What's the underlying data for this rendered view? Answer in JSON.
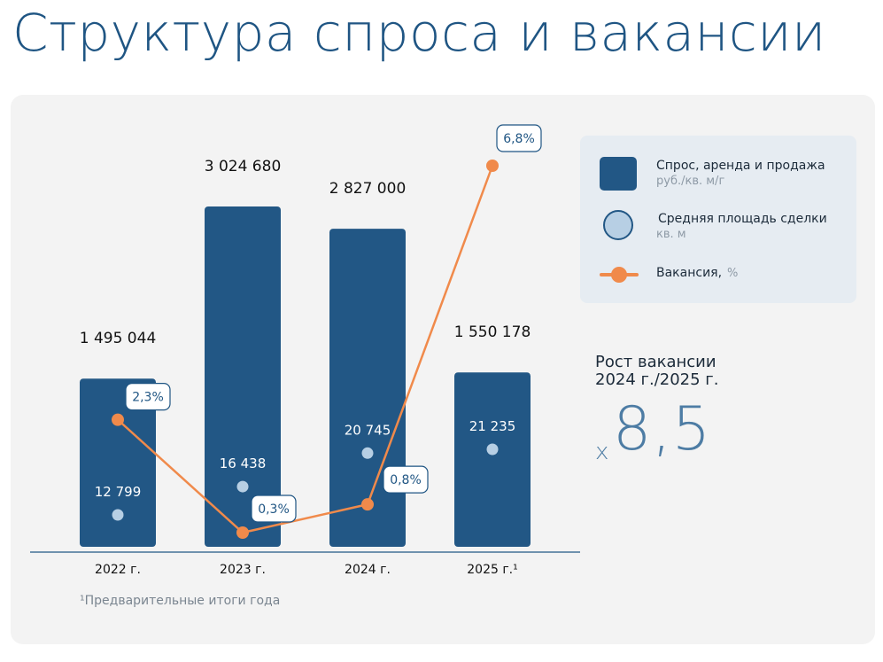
{
  "title": "Структура спроса и вакансии",
  "colors": {
    "bar": "#225785",
    "area_dot": "#b7cfe4",
    "vacancy_line": "#f08a4b",
    "text_dark": "#1c2b3a",
    "accent_blue": "#1f5583",
    "panel_bg": "#f3f3f3"
  },
  "legend": {
    "placement": "top-right",
    "items": [
      {
        "label": "Спрос, аренда и продажа",
        "unit": "руб./кв. м/г",
        "icon": "bar-swatch"
      },
      {
        "label": "Средняя площадь сделки",
        "unit": "кв. м",
        "icon": "circle-swatch"
      },
      {
        "label": "Вакансия,",
        "unit": "%",
        "icon": "line-marker-swatch"
      }
    ]
  },
  "growth": {
    "title_line1": "Рост вакансии",
    "title_line2": "2024 г./2025 г.",
    "prefix": "х",
    "value": "8,5"
  },
  "footnote": "¹Предварительные итоги года",
  "chart_data": {
    "type": "bar",
    "categories": [
      "2022 г.",
      "2023 г.",
      "2024 г.",
      "2025 г.¹"
    ],
    "series": [
      {
        "name": "Спрос, аренда и продажа",
        "unit": "руб./кв. м/г",
        "type": "bar",
        "values": [
          1495044,
          3024680,
          2827000,
          1550178
        ],
        "labels": [
          "1 495 044",
          "3 024 680",
          "2 827 000",
          "1 550 178"
        ]
      },
      {
        "name": "Средняя площадь сделки",
        "unit": "кв. м",
        "type": "scatter",
        "values": [
          12799,
          16438,
          20745,
          21235
        ],
        "labels": [
          "12 799",
          "16 438",
          "20 745",
          "21 235"
        ]
      },
      {
        "name": "Вакансия",
        "unit": "%",
        "type": "line",
        "values": [
          2.3,
          0.3,
          0.8,
          6.8
        ],
        "labels": [
          "2,3%",
          "0,3%",
          "0,8%",
          "6,8%"
        ]
      }
    ],
    "grid": false
  }
}
